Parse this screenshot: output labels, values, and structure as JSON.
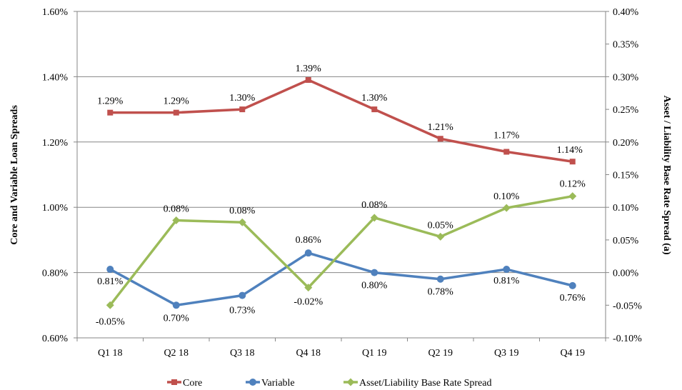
{
  "chart_data": {
    "type": "line",
    "categories": [
      "Q1 18",
      "Q2 18",
      "Q3 18",
      "Q4 18",
      "Q1 19",
      "Q2 19",
      "Q3 19",
      "Q4 19"
    ],
    "ylabel": "Core and Variable Loan Spreads",
    "y2label": "Asset / Liability Base Rate Spread (a)",
    "ylim": [
      0.6,
      1.6
    ],
    "y2lim": [
      -0.1,
      0.4
    ],
    "yticks": [
      "0.60%",
      "0.80%",
      "1.00%",
      "1.20%",
      "1.40%",
      "1.60%"
    ],
    "y2ticks": [
      "-0.10%",
      "-0.05%",
      "0.00%",
      "0.05%",
      "0.10%",
      "0.15%",
      "0.20%",
      "0.25%",
      "0.30%",
      "0.35%",
      "0.40%"
    ],
    "legend_position": "bottom",
    "series": [
      {
        "name": "Core",
        "axis": "left",
        "color": "#c0504d",
        "marker": "square",
        "values": [
          1.29,
          1.29,
          1.3,
          1.39,
          1.3,
          1.21,
          1.17,
          1.14
        ],
        "labels": [
          "1.29%",
          "1.29%",
          "1.30%",
          "1.39%",
          "1.30%",
          "1.21%",
          "1.17%",
          "1.14%"
        ]
      },
      {
        "name": "Variable",
        "axis": "left",
        "color": "#4f81bd",
        "marker": "circle",
        "values": [
          0.81,
          0.7,
          0.73,
          0.86,
          0.8,
          0.78,
          0.81,
          0.76
        ],
        "labels": [
          "0.81%",
          "0.70%",
          "0.73%",
          "0.86%",
          "0.80%",
          "0.78%",
          "0.81%",
          "0.76%"
        ]
      },
      {
        "name": "Asset/Liability Base Rate Spread",
        "axis": "right",
        "color": "#9bbb59",
        "marker": "diamond",
        "values": [
          -0.05,
          0.08,
          0.077,
          -0.023,
          0.084,
          0.055,
          0.099,
          0.117
        ],
        "labels": [
          "-0.05%",
          "0.08%",
          "0.08%",
          "-0.02%",
          "0.08%",
          "0.05%",
          "0.10%",
          "0.12%"
        ]
      }
    ]
  }
}
